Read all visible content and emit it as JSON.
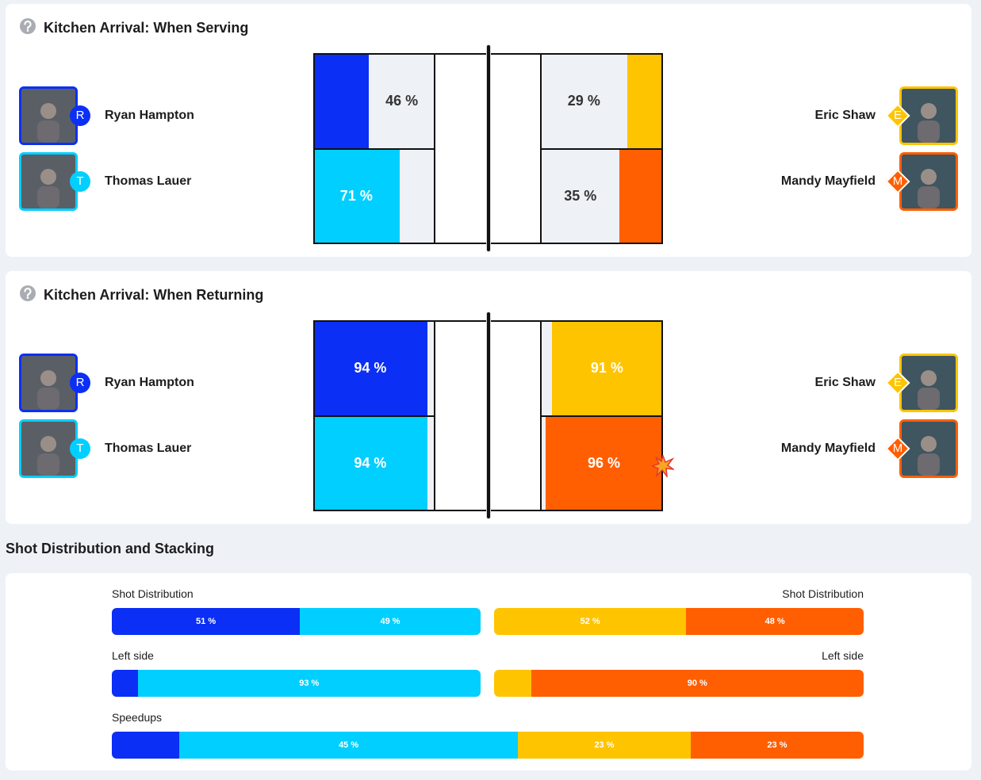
{
  "sections": [
    {
      "title": "Kitchen Arrival: When Serving",
      "left": [
        {
          "name": "Ryan Hampton",
          "initial": "R",
          "pct": {
            "value": 46,
            "label": "46 %"
          }
        },
        {
          "name": "Thomas Lauer",
          "initial": "T",
          "pct": {
            "value": 71,
            "label": "71 %"
          }
        }
      ],
      "right": [
        {
          "name": "Eric Shaw",
          "initial": "E",
          "pct": {
            "value": 29,
            "label": "29 %"
          }
        },
        {
          "name": "Mandy Mayfield",
          "initial": "M",
          "pct": {
            "value": 35,
            "label": "35 %"
          }
        }
      ]
    },
    {
      "title": "Kitchen Arrival: When Returning",
      "left": [
        {
          "name": "Ryan Hampton",
          "initial": "R",
          "pct": {
            "value": 94,
            "label": "94 %"
          }
        },
        {
          "name": "Thomas Lauer",
          "initial": "T",
          "pct": {
            "value": 94,
            "label": "94 %"
          }
        }
      ],
      "right": [
        {
          "name": "Eric Shaw",
          "initial": "E",
          "pct": {
            "value": 91,
            "label": "91 %"
          }
        },
        {
          "name": "Mandy Mayfield",
          "initial": "M",
          "pct": {
            "value": 96,
            "label": "96 %"
          }
        }
      ]
    }
  ],
  "shots": {
    "title": "Shot Distribution and Stacking",
    "rows": [
      {
        "left_label": "Shot Distribution",
        "right_label": "Shot Distribution",
        "left": [
          {
            "value": 51,
            "label": "51 %"
          },
          {
            "value": 49,
            "label": "49 %"
          }
        ],
        "right": [
          {
            "value": 52,
            "label": "52 %"
          },
          {
            "value": 48,
            "label": "48 %"
          }
        ]
      },
      {
        "left_label": "Left side",
        "right_label": "Left side",
        "left": [
          {
            "value": 7
          },
          {
            "value": 93,
            "label": "93 %"
          }
        ],
        "right": [
          {
            "value": 10
          },
          {
            "value": 90,
            "label": "90 %"
          }
        ]
      },
      {
        "left_label": "Speedups",
        "full": [
          {
            "value": 9
          },
          {
            "value": 45,
            "label": "45 %"
          },
          {
            "value": 23,
            "label": "23 %"
          },
          {
            "value": 23,
            "label": "23 %"
          }
        ]
      }
    ]
  }
}
